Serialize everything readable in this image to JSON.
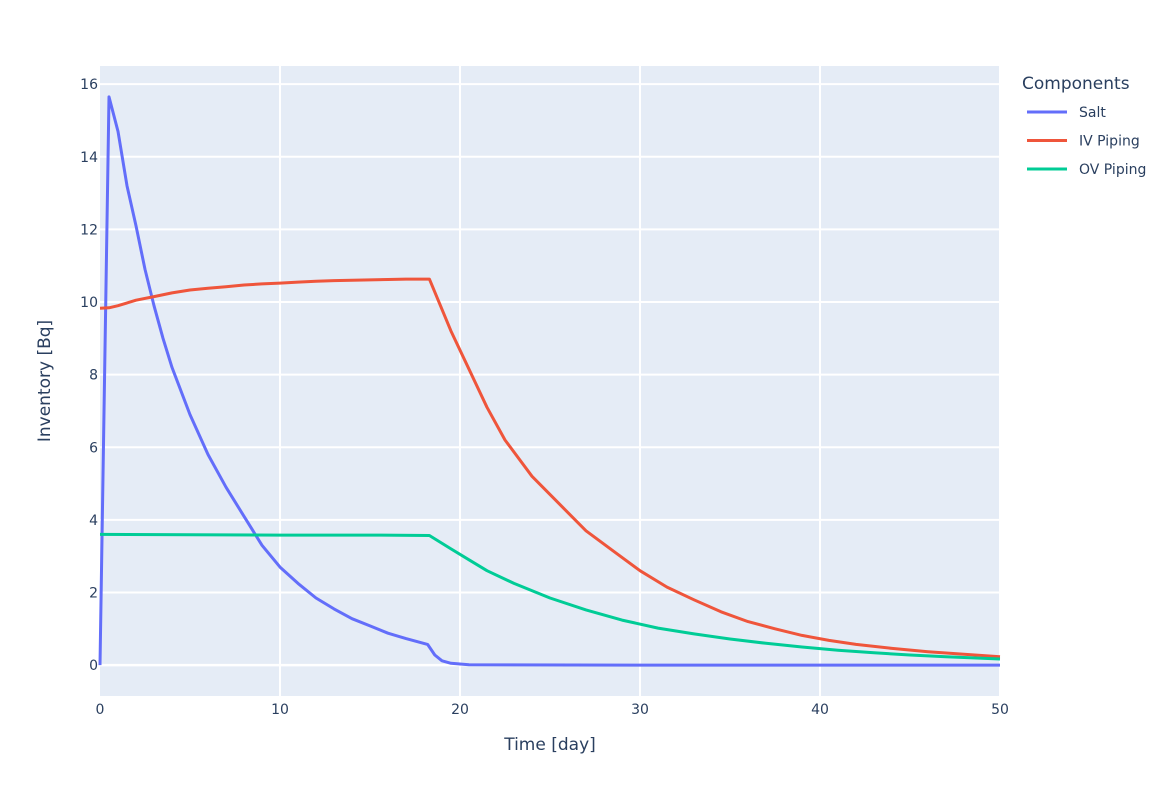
{
  "chart_data": {
    "type": "line",
    "xlabel": "Time [day]",
    "ylabel": "Inventory [Bq]",
    "xlim": [
      0,
      50
    ],
    "ylim": [
      -0.85,
      16.5
    ],
    "xticks": [
      0,
      10,
      20,
      30,
      40,
      50
    ],
    "yticks": [
      0,
      2,
      4,
      6,
      8,
      10,
      12,
      14,
      16
    ],
    "grid": true,
    "plot_background": "#e5ecf6",
    "grid_color": "#ffffff",
    "legend": {
      "title": "Components",
      "placement": "right"
    },
    "series": [
      {
        "name": "Salt",
        "color": "#636efa",
        "points": [
          [
            0,
            0
          ],
          [
            0.5,
            15.65
          ],
          [
            1,
            14.7
          ],
          [
            1.5,
            13.2
          ],
          [
            2,
            12.1
          ],
          [
            2.5,
            10.9
          ],
          [
            3,
            9.9
          ],
          [
            3.5,
            9.0
          ],
          [
            4,
            8.2
          ],
          [
            5,
            6.9
          ],
          [
            6,
            5.8
          ],
          [
            7,
            4.9
          ],
          [
            8,
            4.1
          ],
          [
            9,
            3.3
          ],
          [
            10,
            2.7
          ],
          [
            11,
            2.25
          ],
          [
            12,
            1.85
          ],
          [
            13,
            1.55
          ],
          [
            14,
            1.28
          ],
          [
            15,
            1.08
          ],
          [
            16,
            0.88
          ],
          [
            17,
            0.73
          ],
          [
            18.2,
            0.57
          ],
          [
            18.6,
            0.28
          ],
          [
            19,
            0.12
          ],
          [
            19.5,
            0.05
          ],
          [
            20.5,
            0.01
          ],
          [
            30,
            0
          ],
          [
            40,
            0
          ],
          [
            50,
            0
          ]
        ]
      },
      {
        "name": "IV Piping",
        "color": "#ef553b",
        "points": [
          [
            0,
            9.83
          ],
          [
            0.5,
            9.84
          ],
          [
            1,
            9.9
          ],
          [
            2,
            10.05
          ],
          [
            3,
            10.15
          ],
          [
            4,
            10.25
          ],
          [
            5,
            10.33
          ],
          [
            6,
            10.38
          ],
          [
            7,
            10.42
          ],
          [
            8,
            10.47
          ],
          [
            9,
            10.5
          ],
          [
            10,
            10.52
          ],
          [
            11,
            10.55
          ],
          [
            12,
            10.57
          ],
          [
            13,
            10.59
          ],
          [
            14,
            10.6
          ],
          [
            15,
            10.61
          ],
          [
            16,
            10.62
          ],
          [
            17,
            10.63
          ],
          [
            18.3,
            10.63
          ],
          [
            19.5,
            9.2
          ],
          [
            20.5,
            8.15
          ],
          [
            21.5,
            7.1
          ],
          [
            22.5,
            6.2
          ],
          [
            24,
            5.2
          ],
          [
            25.5,
            4.45
          ],
          [
            27,
            3.7
          ],
          [
            28.5,
            3.15
          ],
          [
            30,
            2.6
          ],
          [
            31.5,
            2.15
          ],
          [
            33,
            1.8
          ],
          [
            34.5,
            1.47
          ],
          [
            36,
            1.2
          ],
          [
            37.5,
            1.0
          ],
          [
            39,
            0.82
          ],
          [
            40.5,
            0.68
          ],
          [
            42,
            0.57
          ],
          [
            44,
            0.46
          ],
          [
            46,
            0.37
          ],
          [
            48,
            0.3
          ],
          [
            50,
            0.23
          ]
        ]
      },
      {
        "name": "OV Piping",
        "color": "#00cc96",
        "points": [
          [
            0,
            3.6
          ],
          [
            5,
            3.59
          ],
          [
            10,
            3.58
          ],
          [
            15,
            3.58
          ],
          [
            18.3,
            3.57
          ],
          [
            19.5,
            3.2
          ],
          [
            20.5,
            2.9
          ],
          [
            21.5,
            2.6
          ],
          [
            23,
            2.25
          ],
          [
            25,
            1.85
          ],
          [
            27,
            1.52
          ],
          [
            29,
            1.24
          ],
          [
            31,
            1.02
          ],
          [
            33,
            0.86
          ],
          [
            35,
            0.72
          ],
          [
            37,
            0.6
          ],
          [
            39,
            0.5
          ],
          [
            41,
            0.41
          ],
          [
            43,
            0.34
          ],
          [
            45,
            0.28
          ],
          [
            47,
            0.23
          ],
          [
            50,
            0.17
          ]
        ]
      }
    ]
  }
}
